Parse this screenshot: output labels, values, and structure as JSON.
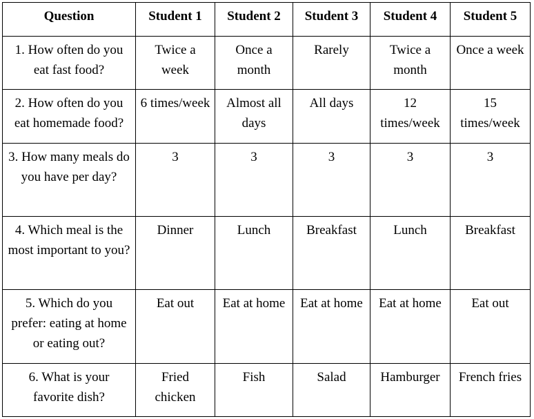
{
  "headers": [
    "Question",
    "Student 1",
    "Student 2",
    "Student 3",
    "Student 4",
    "Student 5"
  ],
  "rows": [
    {
      "question": "1. How often do you eat fast food?",
      "answers": [
        "Twice a week",
        "Once a month",
        "Rarely",
        "Twice a month",
        "Once a week"
      ]
    },
    {
      "question": "2. How often do you eat homemade food?",
      "answers": [
        "6 times/week",
        "Almost all days",
        "All days",
        "12 times/week",
        "15 times/week"
      ]
    },
    {
      "question": "3. How many meals do you have per day?",
      "answers": [
        "3",
        "3",
        "3",
        "3",
        "3"
      ]
    },
    {
      "question": "4. Which meal is the most important to you?",
      "answers": [
        "Dinner",
        "Lunch",
        "Breakfast",
        "Lunch",
        "Breakfast"
      ]
    },
    {
      "question": "5. Which do you prefer: eating at home or eating out?",
      "answers": [
        "Eat out",
        "Eat at home",
        "Eat at home",
        "Eat at home",
        "Eat out"
      ]
    },
    {
      "question": "6. What is your favorite dish?",
      "answers": [
        "Fried chicken",
        "Fish",
        "Salad",
        "Hamburger",
        "French fries"
      ]
    }
  ]
}
